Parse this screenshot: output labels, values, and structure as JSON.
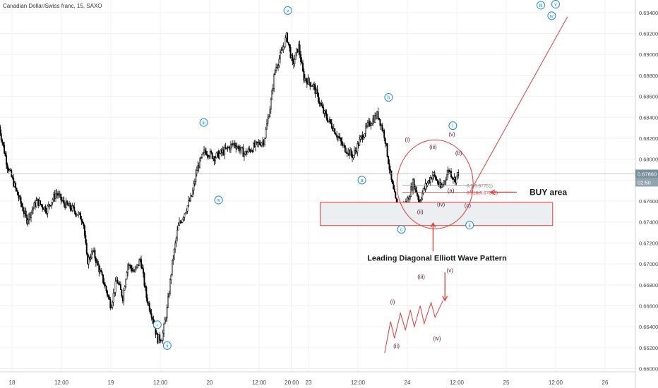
{
  "header": {
    "symbol_label": "Canadian Dollar/Swiss franc, 15, SAXO"
  },
  "chart_data": {
    "type": "candlestick",
    "instrument": "Canadian Dollar/Swiss franc",
    "interval": "15",
    "source": "SAXO",
    "ylim": [
      0.6597,
      0.6952
    ],
    "y_ticks": [
      "0.69400",
      "0.69200",
      "0.69000",
      "0.68800",
      "0.68600",
      "0.68400",
      "0.68200",
      "0.68000",
      "0.67800",
      "0.67600",
      "0.67400",
      "0.67200",
      "0.67000",
      "0.66800",
      "0.66600",
      "0.66400",
      "0.66200",
      "0.66000"
    ],
    "x_ticks": [
      {
        "label": "18",
        "t": 0
      },
      {
        "label": "12:00",
        "t": 0.5
      },
      {
        "label": "19",
        "t": 1
      },
      {
        "label": "12:00",
        "t": 1.5
      },
      {
        "label": "20",
        "t": 2
      },
      {
        "label": "12:00",
        "t": 2.5
      },
      {
        "label": "20:00",
        "t": 2.83
      },
      {
        "label": "23",
        "t": 3
      },
      {
        "label": "12:00",
        "t": 3.5
      },
      {
        "label": "24",
        "t": 4
      },
      {
        "label": "12:00",
        "t": 4.5
      },
      {
        "label": "25",
        "t": 5
      },
      {
        "label": "12:00",
        "t": 5.5
      },
      {
        "label": "26",
        "t": 6
      }
    ],
    "price_path": [
      {
        "t": -0.13,
        "v": 0.6831
      },
      {
        "t": -0.05,
        "v": 0.6795
      },
      {
        "t": 0.05,
        "v": 0.6768
      },
      {
        "t": 0.15,
        "v": 0.6742
      },
      {
        "t": 0.25,
        "v": 0.676
      },
      {
        "t": 0.35,
        "v": 0.6752
      },
      {
        "t": 0.45,
        "v": 0.6768
      },
      {
        "t": 0.52,
        "v": 0.6758
      },
      {
        "t": 0.62,
        "v": 0.6752
      },
      {
        "t": 0.72,
        "v": 0.6742
      },
      {
        "t": 0.76,
        "v": 0.6702
      },
      {
        "t": 0.82,
        "v": 0.6712
      },
      {
        "t": 0.88,
        "v": 0.6695
      },
      {
        "t": 0.93,
        "v": 0.6682
      },
      {
        "t": 1.0,
        "v": 0.666
      },
      {
        "t": 1.06,
        "v": 0.6685
      },
      {
        "t": 1.12,
        "v": 0.6668
      },
      {
        "t": 1.17,
        "v": 0.67
      },
      {
        "t": 1.24,
        "v": 0.6692
      },
      {
        "t": 1.3,
        "v": 0.6705
      },
      {
        "t": 1.36,
        "v": 0.6668
      },
      {
        "t": 1.42,
        "v": 0.665
      },
      {
        "t": 1.47,
        "v": 0.6628
      },
      {
        "t": 1.52,
        "v": 0.663
      },
      {
        "t": 1.57,
        "v": 0.6658
      },
      {
        "t": 1.62,
        "v": 0.67
      },
      {
        "t": 1.68,
        "v": 0.6735
      },
      {
        "t": 1.74,
        "v": 0.6748
      },
      {
        "t": 1.82,
        "v": 0.6765
      },
      {
        "t": 1.87,
        "v": 0.679
      },
      {
        "t": 1.95,
        "v": 0.6808
      },
      {
        "t": 2.05,
        "v": 0.6802
      },
      {
        "t": 2.15,
        "v": 0.6808
      },
      {
        "t": 2.25,
        "v": 0.6815
      },
      {
        "t": 2.35,
        "v": 0.6805
      },
      {
        "t": 2.45,
        "v": 0.6812
      },
      {
        "t": 2.55,
        "v": 0.6818
      },
      {
        "t": 2.62,
        "v": 0.6855
      },
      {
        "t": 2.66,
        "v": 0.6885
      },
      {
        "t": 2.72,
        "v": 0.69
      },
      {
        "t": 2.78,
        "v": 0.6918
      },
      {
        "t": 2.84,
        "v": 0.689
      },
      {
        "t": 2.9,
        "v": 0.6908
      },
      {
        "t": 2.95,
        "v": 0.6878
      },
      {
        "t": 3.05,
        "v": 0.687
      },
      {
        "t": 3.15,
        "v": 0.6845
      },
      {
        "t": 3.25,
        "v": 0.683
      },
      {
        "t": 3.35,
        "v": 0.6812
      },
      {
        "t": 3.45,
        "v": 0.6803
      },
      {
        "t": 3.52,
        "v": 0.6818
      },
      {
        "t": 3.6,
        "v": 0.6832
      },
      {
        "t": 3.7,
        "v": 0.6843
      },
      {
        "t": 3.77,
        "v": 0.6822
      },
      {
        "t": 3.84,
        "v": 0.6778
      },
      {
        "t": 3.9,
        "v": 0.6752
      },
      {
        "t": 3.95,
        "v": 0.6754
      },
      {
        "t": 4.0,
        "v": 0.676
      },
      {
        "t": 4.06,
        "v": 0.6778
      },
      {
        "t": 4.12,
        "v": 0.676
      },
      {
        "t": 4.18,
        "v": 0.6774
      },
      {
        "t": 4.26,
        "v": 0.6786
      },
      {
        "t": 4.34,
        "v": 0.6772
      },
      {
        "t": 4.42,
        "v": 0.679
      },
      {
        "t": 4.48,
        "v": 0.678
      },
      {
        "t": 4.52,
        "v": 0.6788
      }
    ],
    "current_price": {
      "label": "0.67860",
      "value": 0.6786
    },
    "countdown_label": "02:50",
    "fib_levels": [
      {
        "label": "0.5(0.67751)",
        "value": 0.67751
      },
      {
        "label": "0.618(0.67685)",
        "value": 0.67685
      }
    ],
    "buy_zone": {
      "t0": 3.12,
      "t1": 5.47,
      "v_high": 0.67587,
      "v_low": 0.67366
    },
    "projection_line": {
      "t0": 4.63,
      "v0": 0.6768,
      "t1": 5.62,
      "v1": 0.6936
    },
    "sketch_points": [
      [
        3.77,
        0.6615
      ],
      [
        3.83,
        0.6645
      ],
      [
        3.87,
        0.6629
      ],
      [
        3.93,
        0.6653
      ],
      [
        3.98,
        0.6637
      ],
      [
        4.03,
        0.6656
      ],
      [
        4.07,
        0.664
      ],
      [
        4.13,
        0.666
      ],
      [
        4.17,
        0.6643
      ],
      [
        4.24,
        0.6663
      ],
      [
        4.28,
        0.6649
      ],
      [
        4.36,
        0.6665
      ]
    ]
  },
  "annotations": {
    "wave_circle": [
      {
        "id": "w-i-blue-low",
        "text": "i",
        "t": 1.47,
        "v": 0.6642
      },
      {
        "id": "w-ii-blue-low",
        "text": "ii",
        "t": 1.57,
        "v": 0.6622
      },
      {
        "id": "w-iii-blue",
        "text": "iii",
        "t": 1.94,
        "v": 0.6835
      },
      {
        "id": "w-iv-blue",
        "text": "iv",
        "t": 2.09,
        "v": 0.6761
      },
      {
        "id": "w-v-blue",
        "text": "v",
        "t": 2.79,
        "v": 0.6942
      },
      {
        "id": "w-a",
        "text": "a",
        "t": 3.54,
        "v": 0.678
      },
      {
        "id": "w-b",
        "text": "b",
        "t": 3.81,
        "v": 0.6859
      },
      {
        "id": "w-c",
        "text": "c",
        "t": 3.94,
        "v": 0.6733
      },
      {
        "id": "w-i-right",
        "text": "i",
        "t": 4.46,
        "v": 0.6832
      },
      {
        "id": "w-ii-right",
        "text": "ii",
        "t": 4.63,
        "v": 0.6737
      },
      {
        "id": "w-iii-top",
        "text": "iii",
        "t": 5.35,
        "v": 0.6947
      },
      {
        "id": "w-iv-top",
        "text": "iv",
        "t": 5.46,
        "v": 0.6937
      },
      {
        "id": "w-v-top",
        "text": "v",
        "t": 5.5,
        "v": 0.6948
      }
    ],
    "wave_text": [
      {
        "id": "w-(i)",
        "text": "(i)",
        "t": 4.0,
        "v": 0.6817
      },
      {
        "id": "w-(ii)",
        "text": "(ii)",
        "t": 4.13,
        "v": 0.6748
      },
      {
        "id": "w-(iii)",
        "text": "(iii)",
        "t": 4.26,
        "v": 0.681
      },
      {
        "id": "w-(iv)",
        "text": "(iv)",
        "t": 4.34,
        "v": 0.6755
      },
      {
        "id": "w-(v)",
        "text": "(v)",
        "t": 4.45,
        "v": 0.6822
      },
      {
        "id": "w-(b)",
        "text": "(b)",
        "t": 4.52,
        "v": 0.6804
      },
      {
        "id": "w-(a)",
        "text": "(a)",
        "t": 4.44,
        "v": 0.6768
      },
      {
        "id": "w-(c)",
        "text": "(c)",
        "t": 4.61,
        "v": 0.6754
      },
      {
        "id": "s-(i)",
        "text": "(i)",
        "t": 3.85,
        "v": 0.6662
      },
      {
        "id": "s-(ii)",
        "text": "(ii)",
        "t": 3.89,
        "v": 0.662
      },
      {
        "id": "s-(iii)",
        "text": "(iii)",
        "t": 4.14,
        "v": 0.6686
      },
      {
        "id": "s-(iv)",
        "text": "(iv)",
        "t": 4.3,
        "v": 0.6627
      },
      {
        "id": "s-(v)",
        "text": "(v)",
        "t": 4.43,
        "v": 0.6692
      }
    ],
    "buy_label": "BUY area",
    "pattern_label": "Leading Diagonal Elliott Wave Pattern"
  },
  "colors": {
    "candle": "#000000",
    "annotation_red": "#e53935",
    "wave_blue": "#1e88e5",
    "wave_dark": "#5d1a2a",
    "grid": "#eef0f4",
    "buy_zone_fill": "#eceff2"
  }
}
